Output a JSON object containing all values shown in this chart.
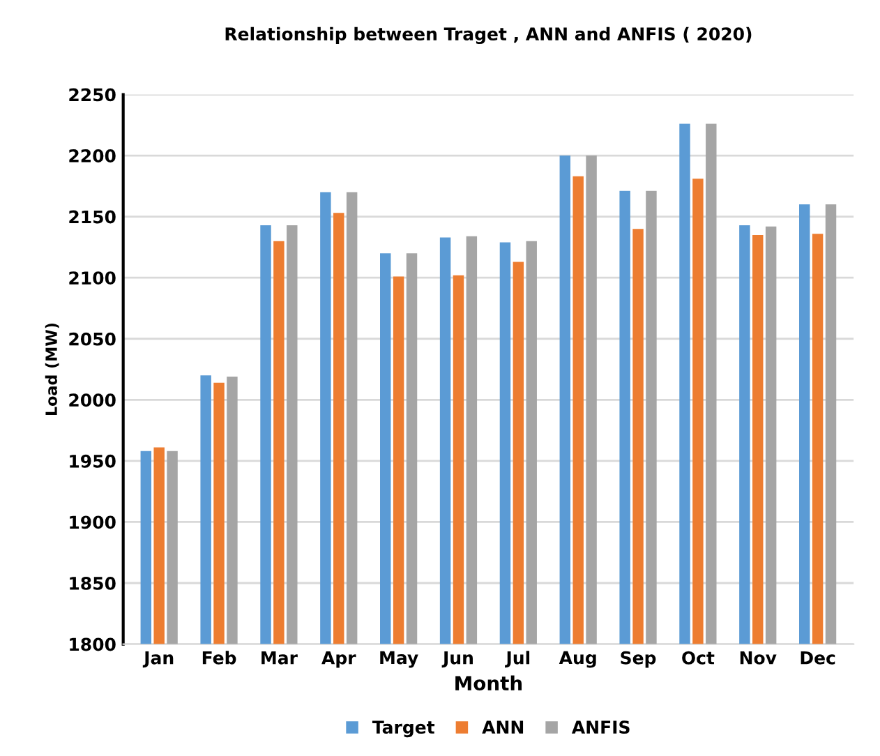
{
  "chart_data": {
    "type": "bar",
    "title": "Relationship between Traget , ANN and ANFIS ( 2020)",
    "xlabel": "Month",
    "ylabel": "Load (MW)",
    "categories": [
      "Jan",
      "Feb",
      "Mar",
      "Apr",
      "May",
      "Jun",
      "Jul",
      "Aug",
      "Sep",
      "Oct",
      "Nov",
      "Dec"
    ],
    "series": [
      {
        "name": "Target",
        "color": "#5b9bd5",
        "values": [
          1958,
          2020,
          2143,
          2170,
          2120,
          2133,
          2129,
          2200,
          2171,
          2226,
          2143,
          2160
        ]
      },
      {
        "name": "ANN",
        "color": "#ed7d31",
        "values": [
          1961,
          2014,
          2130,
          2153,
          2101,
          2102,
          2113,
          2183,
          2140,
          2181,
          2135,
          2136
        ]
      },
      {
        "name": "ANFIS",
        "color": "#a5a5a5",
        "values": [
          1958,
          2019,
          2143,
          2170,
          2120,
          2134,
          2130,
          2200,
          2171,
          2226,
          2142,
          2160
        ]
      }
    ],
    "ylim": [
      1800,
      2250
    ],
    "yticks": [
      1800,
      1850,
      1900,
      1950,
      2000,
      2050,
      2100,
      2150,
      2200,
      2250
    ],
    "grid": "y",
    "legend": "bottom"
  }
}
